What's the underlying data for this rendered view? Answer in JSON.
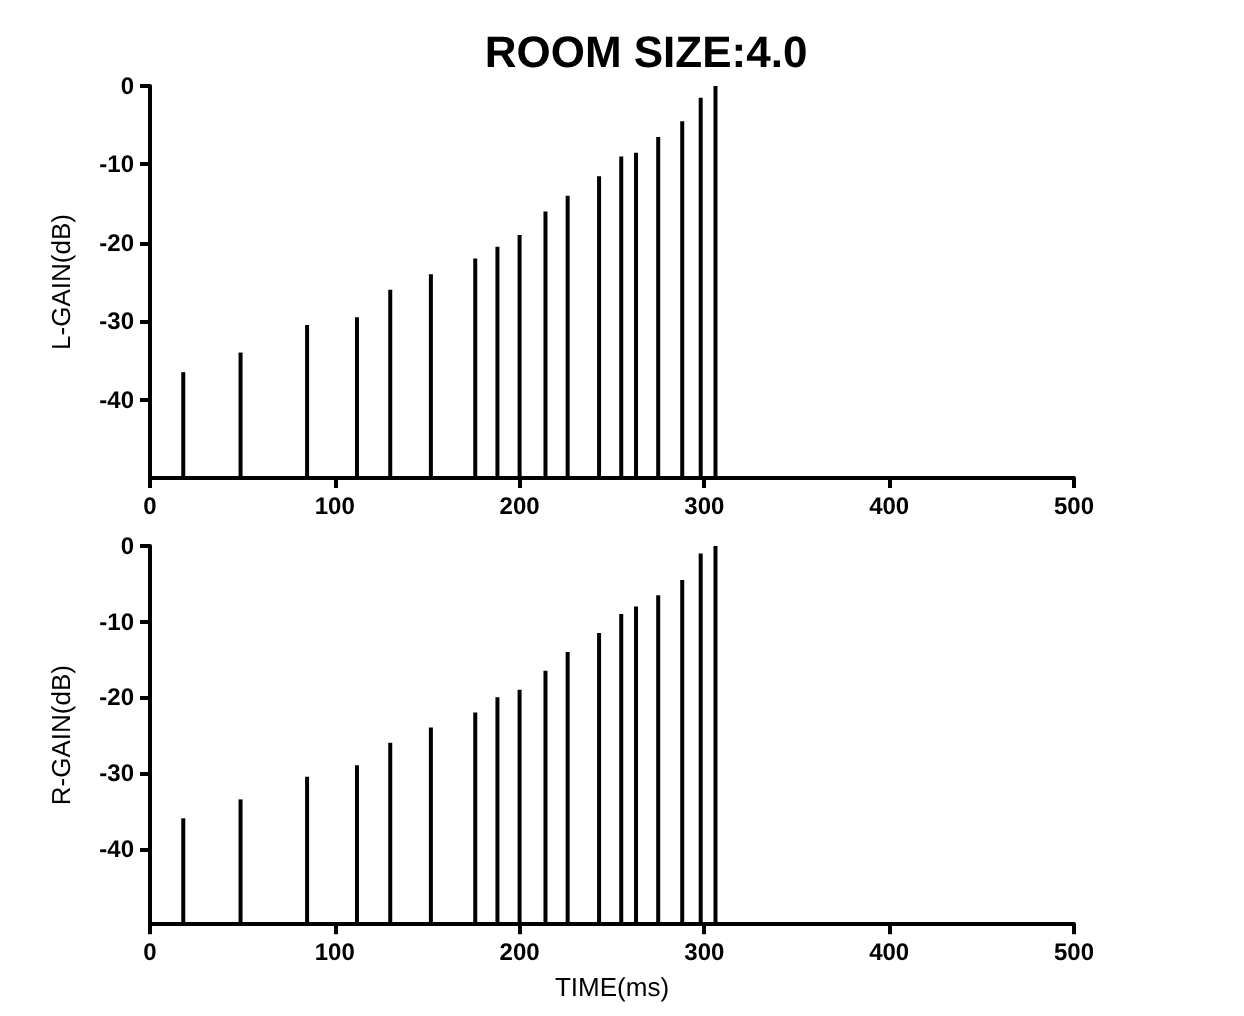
{
  "chart_data": [
    {
      "type": "bar",
      "title": "ROOM SIZE:4.0",
      "ylabel": "L-GAIN(dB)",
      "x": [
        18,
        49,
        85,
        112,
        130,
        152,
        176,
        188,
        200,
        214,
        226,
        243,
        255,
        263,
        275,
        288,
        298,
        306
      ],
      "base": [
        -50,
        -50,
        -50,
        -50,
        -50,
        -50,
        -50,
        -50,
        -50,
        -50,
        -50,
        -50,
        -50,
        -50,
        -50,
        -50,
        -50,
        -50
      ],
      "values": [
        13.5,
        16,
        19.5,
        20.5,
        24,
        26,
        28,
        29.5,
        31,
        34,
        36,
        38.5,
        41,
        41.5,
        43.5,
        45.5,
        48.5,
        50
      ],
      "color": "#000000",
      "xlim": [
        0,
        500
      ],
      "xticks": [
        0,
        100,
        200,
        300,
        400,
        500
      ],
      "ylim": [
        -50,
        0
      ],
      "yticks": [
        0,
        -10,
        -20,
        -30,
        -40
      ]
    },
    {
      "type": "bar",
      "xlabel": "TIME(ms)",
      "ylabel": "R-GAIN(dB)",
      "x": [
        18,
        49,
        85,
        112,
        130,
        152,
        176,
        188,
        200,
        214,
        226,
        243,
        255,
        263,
        275,
        288,
        298,
        306
      ],
      "base": [
        -50,
        -50,
        -50,
        -50,
        -50,
        -50,
        -50,
        -50,
        -50,
        -50,
        -50,
        -50,
        -50,
        -50,
        -50,
        -50,
        -50,
        -50
      ],
      "values": [
        14,
        16.5,
        19.5,
        21,
        24,
        26,
        28,
        30,
        31,
        33.5,
        36,
        38.5,
        41,
        42,
        43.5,
        45.5,
        49,
        50
      ],
      "color": "#000000",
      "xlim": [
        0,
        500
      ],
      "xticks": [
        0,
        100,
        200,
        300,
        400,
        500
      ],
      "ylim": [
        -50,
        0
      ],
      "yticks": [
        0,
        -10,
        -20,
        -30,
        -40
      ]
    }
  ]
}
